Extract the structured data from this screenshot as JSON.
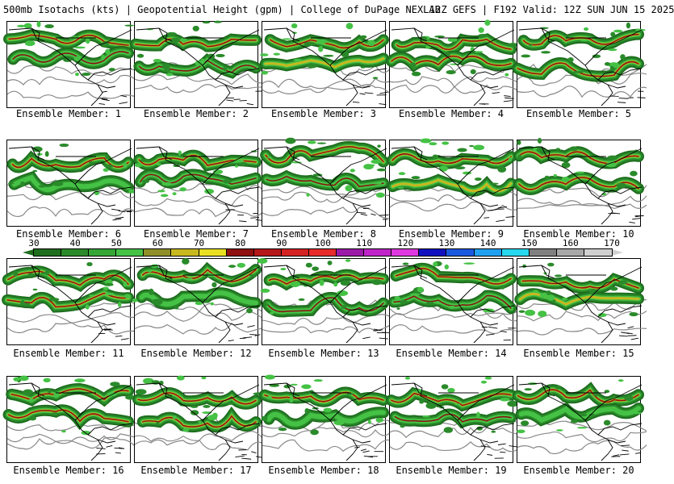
{
  "header": {
    "left": "500mb Isotachs (kts) | Geopotential Height (gpm) | College of DuPage NEXLAB",
    "right": "12Z GEFS | F192 Valid: 12Z SUN JUN 15 2025"
  },
  "members": [
    {
      "label": "Ensemble Member: 1"
    },
    {
      "label": "Ensemble Member: 2"
    },
    {
      "label": "Ensemble Member: 3"
    },
    {
      "label": "Ensemble Member: 4"
    },
    {
      "label": "Ensemble Member: 5"
    },
    {
      "label": "Ensemble Member: 6"
    },
    {
      "label": "Ensemble Member: 7"
    },
    {
      "label": "Ensemble Member: 8"
    },
    {
      "label": "Ensemble Member: 9"
    },
    {
      "label": "Ensemble Member: 10"
    },
    {
      "label": "Ensemble Member: 11"
    },
    {
      "label": "Ensemble Member: 12"
    },
    {
      "label": "Ensemble Member: 13"
    },
    {
      "label": "Ensemble Member: 14"
    },
    {
      "label": "Ensemble Member: 15"
    },
    {
      "label": "Ensemble Member: 16"
    },
    {
      "label": "Ensemble Member: 17"
    },
    {
      "label": "Ensemble Member: 18"
    },
    {
      "label": "Ensemble Member: 19"
    },
    {
      "label": "Ensemble Member: 20"
    }
  ],
  "colorbar": {
    "ticks_top": [
      "30",
      "50",
      "70",
      "90",
      "110",
      "130",
      "150",
      "170"
    ],
    "ticks_bottom": [
      "40",
      "60",
      "80",
      "100",
      "120",
      "140",
      "160"
    ],
    "colors": [
      "#1e6e1e",
      "#2a8a2a",
      "#35a535",
      "#45c245",
      "#8f8f2a",
      "#c8b820",
      "#e8e020",
      "#8f1010",
      "#b41818",
      "#d42222",
      "#e82a2a",
      "#9b1aa8",
      "#c024c8",
      "#e038e0",
      "#1010c0",
      "#1a58e0",
      "#20a0f0",
      "#28d8f0",
      "#808080",
      "#a8a8a8",
      "#d0d0d0"
    ]
  },
  "colors": {
    "contour": "#888888",
    "coast": "#000000",
    "jet_core": "#8b1010",
    "jet_mid": "#c8b820"
  }
}
